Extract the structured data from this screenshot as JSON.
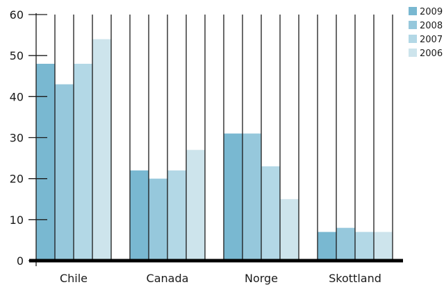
{
  "chart_data": {
    "type": "bar",
    "title": "",
    "xlabel": "",
    "ylabel": "",
    "categories": [
      "Chile",
      "Canada",
      "Norge",
      "Skottland"
    ],
    "series": [
      {
        "name": "2009",
        "color": "#79b8d1",
        "values": [
          48,
          22,
          31,
          7
        ]
      },
      {
        "name": "2008",
        "color": "#96c8dc",
        "values": [
          43,
          20,
          31,
          8
        ]
      },
      {
        "name": "2007",
        "color": "#b3d8e6",
        "values": [
          48,
          22,
          23,
          7
        ]
      },
      {
        "name": "2006",
        "color": "#cde4ec",
        "values": [
          54,
          27,
          15,
          7
        ]
      }
    ],
    "ylim": [
      0,
      60
    ],
    "yticks": [
      0,
      10,
      20,
      30,
      40,
      50,
      60
    ],
    "grid": "vertical lines",
    "legend_position": "top-right"
  }
}
